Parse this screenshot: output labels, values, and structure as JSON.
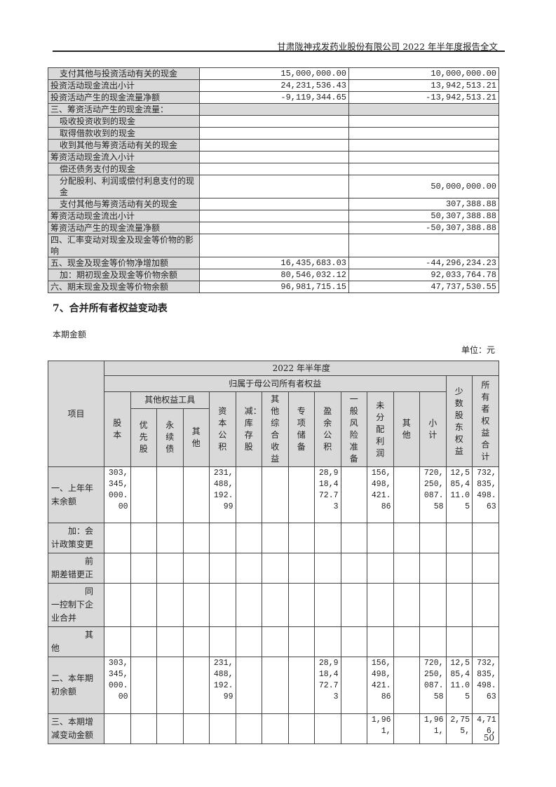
{
  "header": "甘肃陇神戎发药业股份有限公司 2022 年半年度报告全文",
  "cashflow_rows": [
    {
      "label": "支付其他与投资活动有关的现金",
      "indent": true,
      "current": "15,000,000.00",
      "prior": "10,000,000.00"
    },
    {
      "label": "投资活动现金流出小计",
      "indent": false,
      "current": "24,231,536.43",
      "prior": "13,942,513.21"
    },
    {
      "label": "投资活动产生的现金流量净额",
      "indent": false,
      "current": "-9,119,344.65",
      "prior": "-13,942,513.21"
    },
    {
      "label": "三、筹资活动产生的现金流量：",
      "indent": false,
      "section": true,
      "current": "",
      "prior": ""
    },
    {
      "label": "吸收投资收到的现金",
      "indent": true,
      "current": "",
      "prior": ""
    },
    {
      "label": "取得借款收到的现金",
      "indent": true,
      "current": "",
      "prior": ""
    },
    {
      "label": "收到其他与筹资活动有关的现金",
      "indent": true,
      "current": "",
      "prior": ""
    },
    {
      "label": "筹资活动现金流入小计",
      "indent": false,
      "current": "",
      "prior": ""
    },
    {
      "label": "偿还债务支付的现金",
      "indent": true,
      "current": "",
      "prior": ""
    },
    {
      "label": "分配股利、利润或偿付利息支付的现金",
      "indent": true,
      "current": "",
      "prior": "50,000,000.00"
    },
    {
      "label": "支付其他与筹资活动有关的现金",
      "indent": true,
      "current": "",
      "prior": "307,388.88"
    },
    {
      "label": "筹资活动现金流出小计",
      "indent": false,
      "current": "",
      "prior": "50,307,388.88"
    },
    {
      "label": "筹资活动产生的现金流量净额",
      "indent": false,
      "current": "",
      "prior": "-50,307,388.88"
    },
    {
      "label": "四、汇率变动对现金及现金等价物的影响",
      "indent": false,
      "current": "",
      "prior": ""
    },
    {
      "label": "五、现金及现金等价物净增加额",
      "indent": false,
      "current": "16,435,683.03",
      "prior": "-44,296,234.23"
    },
    {
      "label": "加：期初现金及现金等价物余额",
      "indent": true,
      "current": "80,546,032.12",
      "prior": "92,033,764.78"
    },
    {
      "label": "六、期末现金及现金等价物余额",
      "indent": false,
      "current": "96,981,715.15",
      "prior": "47,737,530.55"
    }
  ],
  "section_title": "7、合并所有者权益变动表",
  "subtitle": "本期金额",
  "unit": "单位：元",
  "equity": {
    "item_header": "项目",
    "period": "2022 年半年度",
    "parent_header": "归属于母公司所有者权益",
    "other_equity_header": "其他权益工具",
    "columns": [
      "股本",
      "优先股",
      "永续债",
      "其他",
      "资本公积",
      "减：库存股",
      "其他综合收益",
      "专项储备",
      "盈余公积",
      "一般风险准备",
      "未分配利润",
      "其他",
      "小计",
      "少数股东权益",
      "所有者权益合计"
    ],
    "rows": [
      {
        "label": "一、上年年末余额",
        "indent": 0,
        "values": [
          "303,345,000.00",
          "",
          "",
          "",
          "231,488,192.99",
          "",
          "",
          "",
          "28,918,472.73",
          "",
          "156,498,421.86",
          "",
          "720,250,087.58",
          "12,585,411.05",
          "732,835,498.63"
        ]
      },
      {
        "label": "加：会计政策变更",
        "indent": 2,
        "values": [
          "",
          "",
          "",
          "",
          "",
          "",
          "",
          "",
          "",
          "",
          "",
          "",
          "",
          "",
          ""
        ]
      },
      {
        "label": "前期差错更正",
        "indent": 4,
        "values": [
          "",
          "",
          "",
          "",
          "",
          "",
          "",
          "",
          "",
          "",
          "",
          "",
          "",
          "",
          ""
        ]
      },
      {
        "label": "同一控制下企业合并",
        "indent": 4,
        "values": [
          "",
          "",
          "",
          "",
          "",
          "",
          "",
          "",
          "",
          "",
          "",
          "",
          "",
          "",
          ""
        ]
      },
      {
        "label": "其他",
        "indent": 4,
        "values": [
          "",
          "",
          "",
          "",
          "",
          "",
          "",
          "",
          "",
          "",
          "",
          "",
          "",
          "",
          ""
        ]
      },
      {
        "label": "二、本年期初余额",
        "indent": 0,
        "values": [
          "303,345,000.00",
          "",
          "",
          "",
          "231,488,192.99",
          "",
          "",
          "",
          "28,918,472.73",
          "",
          "156,498,421.86",
          "",
          "720,250,087.58",
          "12,585,411.05",
          "732,835,498.63"
        ]
      },
      {
        "label": "三、本期增减变动金额",
        "indent": 0,
        "values": [
          "",
          "",
          "",
          "",
          "",
          "",
          "",
          "",
          "",
          "",
          "1,961,",
          "",
          "1,961,",
          "2,755,",
          "4,716,"
        ]
      }
    ]
  },
  "page_number": "50"
}
